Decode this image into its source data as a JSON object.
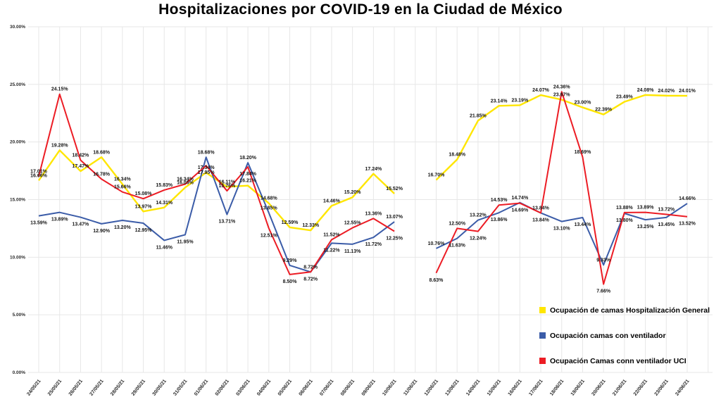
{
  "title": "Hospitalizaciones por COVID-19 en la Ciudad de México",
  "chart_data": {
    "type": "line",
    "title": "Hospitalizaciones por COVID-19 en la Ciudad de México",
    "xlabel": "",
    "ylabel": "",
    "ylim": [
      0,
      30
    ],
    "grid": true,
    "data_labels": true,
    "legend_position": "bottom-right",
    "y_ticks": [
      {
        "value": 30,
        "label": "30.00%"
      },
      {
        "value": 25,
        "label": "25.00%"
      },
      {
        "value": 20,
        "label": "20.00%"
      },
      {
        "value": 15,
        "label": "15.00%"
      },
      {
        "value": 10,
        "label": "10.00%"
      },
      {
        "value": 5,
        "label": "5.00%"
      },
      {
        "value": 0,
        "label": "0.00%"
      }
    ],
    "x": [
      "24/05/21",
      "25/05/21",
      "26/05/21",
      "27/05/21",
      "28/05/21",
      "29/05/21",
      "30/05/21",
      "31/05/21",
      "01/06/21",
      "02/06/21",
      "03/06/21",
      "04/06/21",
      "05/06/21",
      "06/06/21",
      "07/06/21",
      "08/06/21",
      "09/06/21",
      "10/06/21",
      "11/06/21",
      "12/06/21",
      "13/06/21",
      "14/06/21",
      "15/06/21",
      "16/06/21",
      "17/06/21",
      "18/06/21",
      "19/06/21",
      "20/06/21",
      "21/06/21",
      "22/06/21",
      "23/06/21",
      "24/06/21"
    ],
    "series": [
      {
        "name": "Ocupación de camas Hospitalización General",
        "color": "#ffe600",
        "line_width": 2.4,
        "values": [
          16.66,
          19.28,
          17.47,
          18.68,
          16.34,
          13.97,
          14.31,
          16.05,
          17.34,
          16.11,
          16.21,
          14.68,
          12.59,
          12.33,
          14.46,
          15.2,
          17.24,
          15.52,
          null,
          16.7,
          18.48,
          21.85,
          23.14,
          23.19,
          24.07,
          23.67,
          23.0,
          22.39,
          23.49,
          24.08,
          24.02,
          24.01
        ]
      },
      {
        "name": "Ocupación camas con ventilador",
        "color": "#3b5ca8",
        "line_width": 2,
        "values": [
          13.59,
          13.89,
          13.47,
          12.9,
          13.2,
          12.95,
          11.46,
          11.95,
          18.68,
          13.71,
          18.2,
          13.85,
          9.29,
          8.72,
          11.22,
          11.13,
          11.72,
          13.07,
          null,
          10.76,
          11.63,
          13.22,
          13.86,
          14.74,
          13.84,
          13.1,
          13.44,
          9.33,
          13.8,
          13.25,
          13.45,
          14.66
        ]
      },
      {
        "name": "Ocupación Camas conn ventilador UCI",
        "color": "#ec1c24",
        "line_width": 2,
        "values": [
          17.01,
          24.15,
          18.42,
          16.78,
          15.66,
          15.08,
          15.83,
          16.34,
          17.95,
          15.76,
          17.84,
          12.51,
          8.5,
          8.72,
          11.52,
          12.55,
          13.36,
          12.25,
          null,
          8.63,
          12.5,
          12.24,
          14.53,
          14.69,
          13.84,
          24.36,
          18.69,
          7.66,
          13.88,
          13.89,
          13.72,
          13.52
        ]
      }
    ]
  }
}
